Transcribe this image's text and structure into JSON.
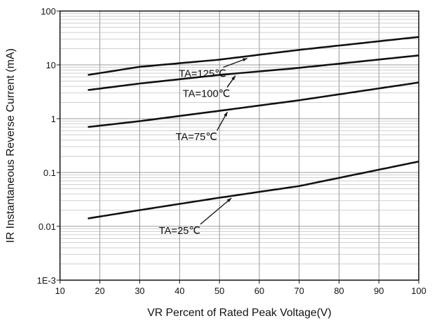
{
  "chart_data": {
    "type": "line",
    "title": "",
    "xlabel": "VR  Percent of Rated Peak Voltage(V)",
    "ylabel": "IR Instantaneous Reverse Current (mA)",
    "xlim": [
      10,
      100
    ],
    "ylim": [
      0.001,
      100
    ],
    "yscale": "log",
    "grid": true,
    "xticks": [
      "10",
      "20",
      "30",
      "40",
      "50",
      "60",
      "70",
      "80",
      "90",
      "100"
    ],
    "yticks": [
      "1E-3",
      "0.01",
      "0.1",
      "1",
      "10",
      "100"
    ],
    "x": [
      17,
      30,
      50,
      70,
      100
    ],
    "series": [
      {
        "name": "TA=125℃",
        "values": [
          6.5,
          9.2,
          12.5,
          19,
          33
        ]
      },
      {
        "name": "TA=100℃",
        "values": [
          3.4,
          4.5,
          6.5,
          8.8,
          15
        ]
      },
      {
        "name": "TA=75℃",
        "values": [
          0.7,
          0.9,
          1.4,
          2.2,
          4.7
        ]
      },
      {
        "name": "TA=25℃",
        "values": [
          0.014,
          0.02,
          0.034,
          0.056,
          0.16
        ]
      }
    ],
    "annotations": [
      {
        "label": "TA=125℃",
        "series": 0,
        "point_x": 57
      },
      {
        "label": "TA=100℃",
        "series": 1,
        "point_x": 54
      },
      {
        "label": "TA=75℃",
        "series": 2,
        "point_x": 52
      },
      {
        "label": "TA=25℃",
        "series": 3,
        "point_x": 53
      }
    ]
  }
}
